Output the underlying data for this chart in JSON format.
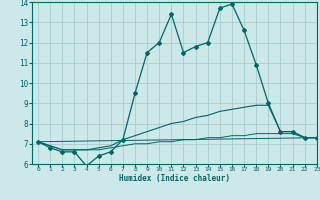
{
  "xlabel": "Humidex (Indice chaleur)",
  "ylabel": "",
  "background_color": "#cce8e8",
  "grid_color": "#aacccc",
  "line_color": "#006666",
  "xlim": [
    -0.5,
    23
  ],
  "ylim": [
    6,
    14
  ],
  "xticks": [
    0,
    1,
    2,
    3,
    4,
    5,
    6,
    7,
    8,
    9,
    10,
    11,
    12,
    13,
    14,
    15,
    16,
    17,
    18,
    19,
    20,
    21,
    22,
    23
  ],
  "yticks": [
    6,
    7,
    8,
    9,
    10,
    11,
    12,
    13,
    14
  ],
  "line1_x": [
    0,
    1,
    2,
    3,
    4,
    5,
    6,
    7,
    8,
    9,
    10,
    11,
    12,
    13,
    14,
    15,
    16,
    17,
    18,
    19,
    20,
    21,
    22,
    23
  ],
  "line1_y": [
    7.1,
    6.8,
    6.6,
    6.6,
    5.9,
    6.4,
    6.6,
    7.2,
    9.5,
    11.5,
    12.0,
    13.4,
    11.5,
    11.8,
    12.0,
    13.7,
    13.9,
    12.6,
    10.9,
    9.0,
    7.6,
    7.6,
    7.3,
    7.3
  ],
  "line2_x": [
    0,
    1,
    2,
    3,
    4,
    5,
    6,
    7,
    8,
    9,
    10,
    11,
    12,
    13,
    14,
    15,
    16,
    17,
    18,
    19,
    20,
    21,
    22,
    23
  ],
  "line2_y": [
    7.1,
    6.9,
    6.7,
    6.7,
    6.7,
    6.8,
    6.9,
    7.2,
    7.4,
    7.6,
    7.8,
    8.0,
    8.1,
    8.3,
    8.4,
    8.6,
    8.7,
    8.8,
    8.9,
    8.9,
    7.6,
    7.6,
    7.3,
    7.3
  ],
  "line3_x": [
    0,
    1,
    2,
    3,
    4,
    5,
    6,
    7,
    8,
    9,
    10,
    11,
    12,
    13,
    14,
    15,
    16,
    17,
    18,
    19,
    20,
    21,
    22,
    23
  ],
  "line3_y": [
    7.1,
    6.9,
    6.7,
    6.7,
    6.7,
    6.7,
    6.8,
    6.9,
    7.0,
    7.0,
    7.1,
    7.1,
    7.2,
    7.2,
    7.3,
    7.3,
    7.4,
    7.4,
    7.5,
    7.5,
    7.5,
    7.5,
    7.3,
    7.3
  ],
  "line4_x": [
    0,
    23
  ],
  "line4_y": [
    7.1,
    7.3
  ]
}
